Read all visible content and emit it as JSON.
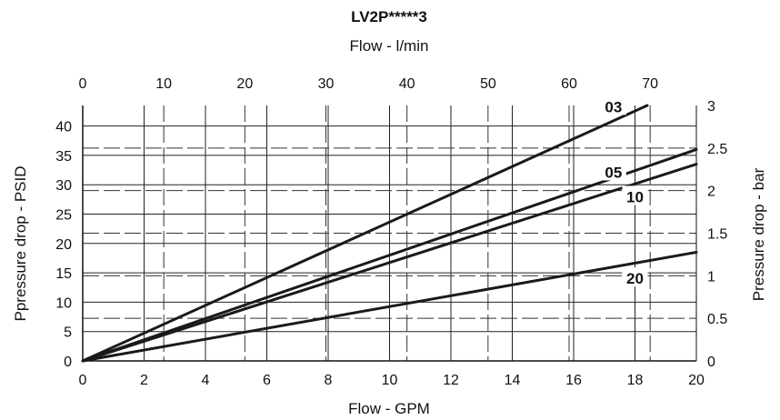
{
  "chart_data": {
    "type": "line",
    "title": "LV2P*****3",
    "xlabel": "Flow - GPM",
    "x2label": "Flow - l/min",
    "ylabel": "Ppressure drop - PSID",
    "y2label": "Pressure drop - bar",
    "xlim": [
      0,
      20
    ],
    "x2lim": [
      0,
      75.7
    ],
    "ylim": [
      0,
      43.5
    ],
    "y2lim": [
      0,
      3
    ],
    "x_ticks": [
      "0",
      "2",
      "4",
      "6",
      "8",
      "10",
      "12",
      "14",
      "16",
      "18",
      "20"
    ],
    "x2_ticks": [
      "0",
      "10",
      "20",
      "30",
      "40",
      "50",
      "60",
      "70"
    ],
    "y_ticks": [
      "0",
      "5",
      "10",
      "15",
      "20",
      "25",
      "30",
      "35",
      "40"
    ],
    "y2_ticks": [
      "0",
      "0.5",
      "1",
      "1.5",
      "2",
      "2.5",
      "3"
    ],
    "grid": true,
    "series": [
      {
        "name": "03",
        "x": [
          0,
          18.4
        ],
        "y": [
          0,
          43.5
        ]
      },
      {
        "name": "05",
        "x": [
          0,
          20
        ],
        "y": [
          0,
          36
        ]
      },
      {
        "name": "10",
        "x": [
          0,
          20
        ],
        "y": [
          0,
          33.5
        ]
      },
      {
        "name": "20",
        "x": [
          0,
          20
        ],
        "y": [
          0,
          18.5
        ]
      }
    ]
  }
}
